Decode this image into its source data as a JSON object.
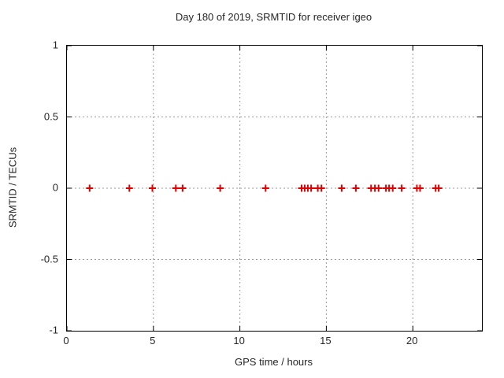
{
  "title": "Day 180 of 2019, SRMTID for receiver igeo",
  "colors": {
    "marker": "#e00000",
    "grid": "#9b9b9b",
    "axis": "#000000",
    "text": "#262626",
    "background": "#ffffff"
  },
  "chart_data": {
    "type": "scatter",
    "title": "Day 180 of 2019, SRMTID for receiver igeo",
    "xlabel": "GPS time / hours",
    "ylabel": "SRMTID / TECUs",
    "xlim": [
      0,
      24
    ],
    "ylim": [
      -1,
      1
    ],
    "xticks": [
      0,
      5,
      10,
      15,
      20
    ],
    "xtick_labels": [
      "0",
      "5",
      "10",
      "15",
      "20"
    ],
    "yticks": [
      -1,
      -0.5,
      0,
      0.5,
      1
    ],
    "ytick_labels": [
      "-1",
      "-0.5",
      "0",
      "0.5",
      "1"
    ],
    "grid": true,
    "legend": "none",
    "marker_style": "plus",
    "series": [
      {
        "name": "SRMTID",
        "x": [
          1.31,
          3.61,
          4.94,
          6.3,
          6.69,
          8.86,
          11.49,
          13.57,
          13.75,
          13.93,
          14.12,
          14.51,
          14.72,
          15.89,
          16.71,
          17.59,
          17.81,
          18.02,
          18.45,
          18.63,
          18.84,
          19.36,
          20.24,
          20.42,
          21.32,
          21.5
        ],
        "y": [
          0,
          0,
          0,
          0,
          0,
          0,
          0,
          0,
          0,
          0,
          0,
          0,
          0,
          0,
          0,
          0,
          0,
          0,
          0,
          0,
          0,
          0,
          0,
          0,
          0,
          0
        ]
      }
    ]
  }
}
